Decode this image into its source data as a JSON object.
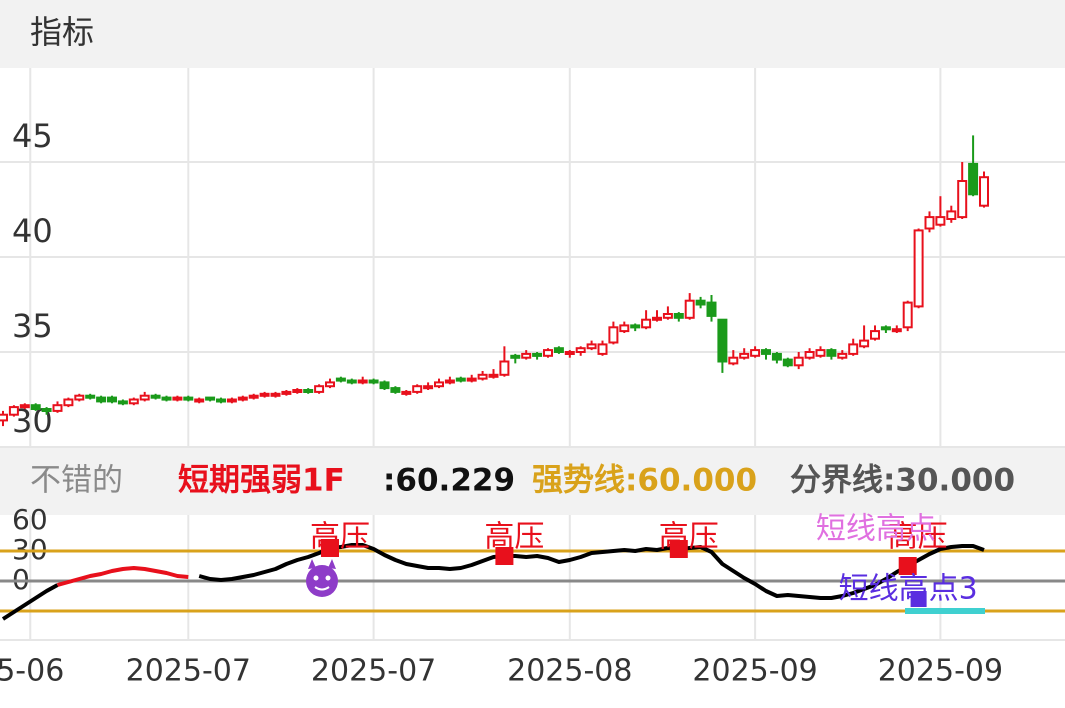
{
  "chart_data": {
    "type": "candlestick",
    "title": "指标",
    "up_color": "#e8101c",
    "down_color": "#1a9a1a",
    "ylim": [
      30,
      50
    ],
    "yticks": [
      30,
      35,
      40,
      45
    ],
    "grid": true,
    "xticks": [
      {
        "value": 2.5,
        "label": "5-06"
      },
      {
        "value": 17,
        "label": "2025-07"
      },
      {
        "value": 34,
        "label": "2025-07"
      },
      {
        "value": 52,
        "label": "2025-08"
      },
      {
        "value": 69,
        "label": "2025-09"
      },
      {
        "value": 86,
        "label": "2025-09"
      }
    ],
    "ohlc": [
      [
        31.4,
        31.9,
        31.1,
        31.7
      ],
      [
        31.7,
        32.2,
        31.6,
        32.1
      ],
      [
        32.1,
        32.3,
        32.0,
        32.2
      ],
      [
        32.2,
        32.3,
        31.9,
        32.0
      ],
      [
        32.0,
        32.1,
        31.7,
        31.9
      ],
      [
        31.9,
        32.4,
        31.8,
        32.2
      ],
      [
        32.2,
        32.6,
        32.1,
        32.5
      ],
      [
        32.5,
        32.8,
        32.4,
        32.7
      ],
      [
        32.7,
        32.8,
        32.5,
        32.6
      ],
      [
        32.6,
        32.7,
        32.3,
        32.4
      ],
      [
        32.6,
        32.7,
        32.3,
        32.4
      ],
      [
        32.4,
        32.5,
        32.2,
        32.3
      ],
      [
        32.3,
        32.6,
        32.2,
        32.5
      ],
      [
        32.5,
        32.9,
        32.4,
        32.7
      ],
      [
        32.7,
        32.8,
        32.5,
        32.6
      ],
      [
        32.6,
        32.7,
        32.4,
        32.5
      ],
      [
        32.5,
        32.7,
        32.4,
        32.6
      ],
      [
        32.6,
        32.7,
        32.4,
        32.5
      ],
      [
        32.4,
        32.6,
        32.3,
        32.5
      ],
      [
        32.6,
        32.6,
        32.4,
        32.5
      ],
      [
        32.5,
        32.6,
        32.3,
        32.4
      ],
      [
        32.4,
        32.6,
        32.3,
        32.5
      ],
      [
        32.5,
        32.7,
        32.4,
        32.6
      ],
      [
        32.6,
        32.8,
        32.5,
        32.7
      ],
      [
        32.7,
        32.9,
        32.6,
        32.8
      ],
      [
        32.7,
        32.9,
        32.6,
        32.8
      ],
      [
        32.8,
        33.0,
        32.7,
        32.9
      ],
      [
        32.9,
        33.1,
        32.8,
        33.0
      ],
      [
        33.0,
        33.1,
        32.8,
        32.9
      ],
      [
        32.9,
        33.3,
        32.8,
        33.2
      ],
      [
        33.2,
        33.6,
        33.1,
        33.4
      ],
      [
        33.6,
        33.7,
        33.4,
        33.5
      ],
      [
        33.5,
        33.6,
        33.3,
        33.4
      ],
      [
        33.4,
        33.7,
        33.3,
        33.5
      ],
      [
        33.5,
        33.6,
        33.3,
        33.4
      ],
      [
        33.4,
        33.5,
        33.0,
        33.1
      ],
      [
        33.1,
        33.2,
        32.8,
        32.9
      ],
      [
        32.8,
        33.0,
        32.7,
        32.9
      ],
      [
        32.9,
        33.3,
        32.8,
        33.2
      ],
      [
        33.1,
        33.4,
        33.0,
        33.2
      ],
      [
        33.2,
        33.6,
        33.1,
        33.4
      ],
      [
        33.4,
        33.7,
        33.3,
        33.5
      ],
      [
        33.6,
        33.7,
        33.4,
        33.5
      ],
      [
        33.5,
        33.8,
        33.4,
        33.6
      ],
      [
        33.6,
        34.0,
        33.5,
        33.8
      ],
      [
        33.7,
        34.1,
        33.6,
        33.8
      ],
      [
        33.8,
        35.3,
        33.7,
        34.5
      ],
      [
        34.8,
        34.9,
        34.4,
        34.7
      ],
      [
        34.7,
        35.1,
        34.6,
        34.9
      ],
      [
        34.9,
        35.0,
        34.6,
        34.8
      ],
      [
        34.8,
        35.2,
        34.7,
        35.1
      ],
      [
        35.2,
        35.3,
        34.9,
        35.0
      ],
      [
        34.9,
        35.1,
        34.7,
        35.0
      ],
      [
        35.0,
        35.3,
        34.8,
        35.2
      ],
      [
        35.2,
        35.6,
        35.1,
        35.4
      ],
      [
        34.9,
        35.6,
        34.8,
        35.4
      ],
      [
        35.5,
        36.6,
        35.4,
        36.3
      ],
      [
        36.1,
        36.6,
        36.0,
        36.4
      ],
      [
        36.4,
        36.5,
        36.1,
        36.3
      ],
      [
        36.3,
        37.2,
        36.2,
        36.7
      ],
      [
        36.7,
        37.2,
        36.6,
        36.8
      ],
      [
        36.8,
        37.4,
        36.7,
        37.0
      ],
      [
        37.0,
        37.1,
        36.6,
        36.8
      ],
      [
        36.8,
        38.1,
        36.7,
        37.7
      ],
      [
        37.7,
        37.9,
        37.3,
        37.5
      ],
      [
        37.6,
        38.0,
        36.6,
        36.9
      ],
      [
        36.7,
        36.7,
        33.9,
        34.5
      ],
      [
        34.4,
        35.1,
        34.3,
        34.7
      ],
      [
        34.7,
        35.2,
        34.6,
        34.9
      ],
      [
        34.8,
        35.3,
        34.7,
        35.1
      ],
      [
        35.1,
        35.2,
        34.6,
        34.9
      ],
      [
        34.9,
        35.0,
        34.4,
        34.6
      ],
      [
        34.6,
        34.7,
        34.2,
        34.3
      ],
      [
        34.3,
        35.0,
        34.1,
        34.7
      ],
      [
        34.7,
        35.2,
        34.6,
        35.0
      ],
      [
        34.8,
        35.3,
        34.7,
        35.1
      ],
      [
        35.1,
        35.2,
        34.6,
        34.8
      ],
      [
        34.7,
        35.1,
        34.6,
        34.9
      ],
      [
        34.9,
        35.7,
        34.8,
        35.4
      ],
      [
        35.3,
        36.4,
        35.2,
        35.6
      ],
      [
        35.7,
        36.4,
        35.6,
        36.1
      ],
      [
        36.3,
        36.4,
        36.0,
        36.2
      ],
      [
        36.1,
        36.4,
        36.0,
        36.2
      ],
      [
        36.3,
        37.7,
        36.1,
        37.6
      ],
      [
        37.4,
        41.5,
        37.3,
        41.4
      ],
      [
        41.5,
        42.4,
        41.3,
        42.1
      ],
      [
        41.7,
        43.2,
        41.6,
        42.1
      ],
      [
        42.0,
        42.7,
        41.8,
        42.4
      ],
      [
        42.1,
        45.0,
        42.0,
        44.0
      ],
      [
        44.9,
        46.4,
        43.2,
        43.3
      ],
      [
        42.7,
        44.5,
        42.6,
        44.2
      ]
    ],
    "indicator": {
      "header": [
        "不错的",
        "短期强弱1F",
        ":60.229",
        "强势线:60.000",
        "分界线:30.000"
      ],
      "header_colors": [
        "#8a8a8a",
        "#e8101c",
        "#111111",
        "#d9a21b",
        "#555555"
      ],
      "ylim": [
        -59,
        66
      ],
      "yticks": [
        0,
        30,
        60
      ],
      "hlines": [
        {
          "value": 30,
          "color": "#d9a21b"
        },
        {
          "value": 0,
          "color": "#888888"
        },
        {
          "value": -30,
          "color": "#d9a21b"
        }
      ],
      "series": [
        {
          "color": "#000000",
          "values": [
            -38,
            -31,
            -24,
            -17,
            -10,
            -4,
            null,
            null,
            null,
            null,
            null,
            null,
            null,
            null,
            null,
            null,
            null,
            null,
            5,
            2,
            1,
            2,
            4,
            6,
            9,
            12,
            17,
            21,
            24,
            28,
            33,
            34,
            36,
            36,
            32,
            26,
            21,
            17,
            15,
            13,
            13,
            12,
            13,
            16,
            20,
            24,
            25,
            25,
            24,
            25,
            23,
            19,
            21,
            24,
            28,
            29,
            30,
            31,
            30,
            32,
            31,
            33,
            32,
            33,
            34,
            29,
            17,
            10,
            3,
            -3,
            -10,
            -15,
            -14,
            -15,
            -16,
            -17,
            -17,
            -15,
            -12,
            -8,
            -4,
            2,
            9,
            15,
            21,
            27,
            32,
            34,
            35,
            35,
            31
          ]
        },
        {
          "color": "#e8101c",
          "values": [
            null,
            null,
            null,
            null,
            null,
            -4,
            -1,
            2,
            5,
            7,
            10,
            12,
            13,
            12,
            10,
            8,
            5,
            4,
            null,
            null,
            null,
            null,
            null,
            null,
            null,
            null,
            null,
            null,
            null,
            null,
            null,
            null,
            null,
            null,
            null,
            null,
            null,
            null,
            null,
            null,
            null,
            null,
            null,
            null,
            null,
            null,
            null,
            null,
            null,
            null,
            null,
            null,
            null,
            null,
            null,
            null,
            null,
            null,
            null,
            null,
            null,
            null,
            null,
            null,
            null,
            null,
            null,
            null,
            null,
            null,
            null,
            null,
            null,
            null,
            null,
            null,
            null,
            null,
            null,
            null,
            null,
            null,
            null,
            null,
            null,
            null,
            null,
            null,
            null,
            null,
            null
          ]
        }
      ],
      "signals": [
        {
          "text": "高压",
          "index": 30,
          "color": "#e8101c"
        },
        {
          "text": "高压",
          "index": 46,
          "color": "#e8101c"
        },
        {
          "text": "高压",
          "index": 62,
          "color": "#e8101c"
        },
        {
          "text": "高压",
          "index": 83,
          "color": "#e8101c"
        },
        {
          "text": "短线高点",
          "index": 81,
          "color": "#e070e0"
        },
        {
          "text": "短线高点3",
          "index": 84,
          "color": "#5a2ee0"
        }
      ]
    }
  }
}
